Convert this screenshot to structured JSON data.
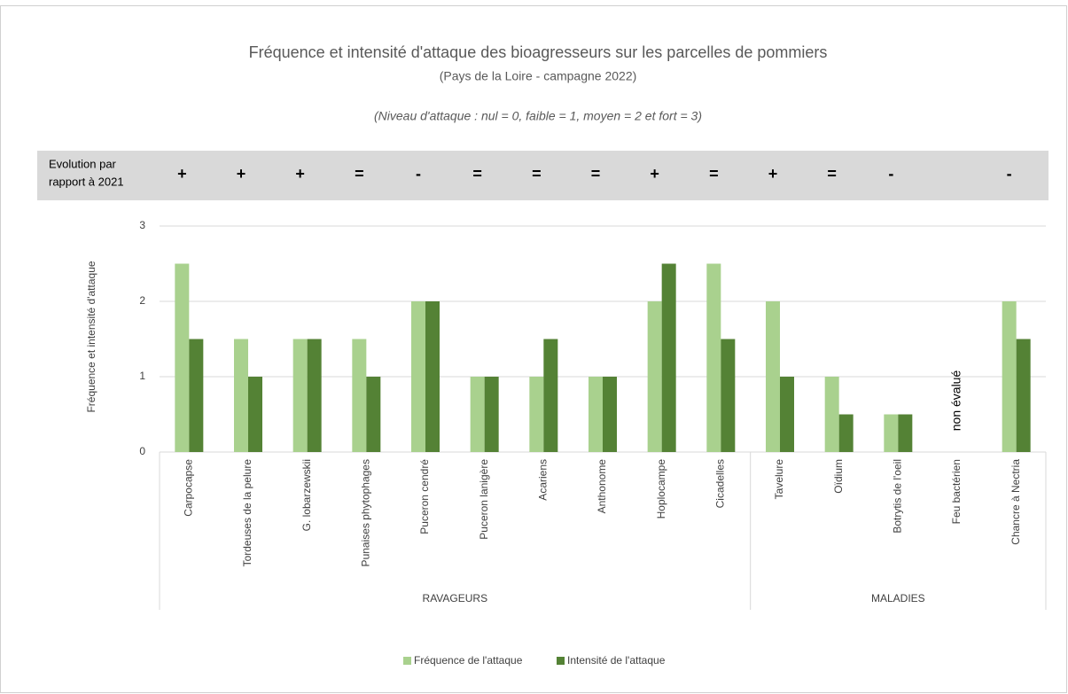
{
  "chart_data": {
    "type": "bar",
    "title": "Fréquence et intensité d'attaque des bioagresseurs sur les parcelles de pommiers",
    "subtitle": "(Pays de la Loire - campagne 2022)",
    "note": "(Niveau d'attaque : nul = 0, faible = 1, moyen = 2 et fort = 3)",
    "y_label": "Fréquence et intensité d'attaque",
    "evolution_label": [
      "Evolution par",
      "rapport à 2021"
    ],
    "evolution": [
      "+",
      "+",
      "+",
      "=",
      "-",
      "=",
      "=",
      "=",
      "+",
      "=",
      "+",
      "=",
      "-",
      null,
      "-"
    ],
    "annotation": "non évalué",
    "categories": [
      "Carpocapse",
      "Tordeuses de la pelure",
      "G. lobarzewskii",
      "Punaises phytophages",
      "Puceron cendré",
      "Puceron lanigère",
      "Acariens",
      "Anthonome",
      "Hoplocampe",
      "Cicadelles",
      "Tavelure",
      "Oïdium",
      "Botrytis de l'oeil",
      "Feu bactérien",
      "Chancre à Nectria"
    ],
    "groups": [
      {
        "name": "RAVAGEURS",
        "size": 10
      },
      {
        "name": "MALADIES",
        "size": 5
      }
    ],
    "series": [
      {
        "name": "Fréquence de l'attaque",
        "color": "#a9d18e",
        "values": [
          2.5,
          1.5,
          1.5,
          1.5,
          2,
          1,
          1,
          1,
          2,
          2.5,
          2,
          1,
          0.5,
          null,
          2
        ]
      },
      {
        "name": "Intensité de l'attaque",
        "color": "#548235",
        "values": [
          1.5,
          1,
          1.5,
          1,
          2,
          1,
          1.5,
          1,
          2.5,
          1.5,
          1,
          0.5,
          0.5,
          null,
          1.5
        ]
      }
    ],
    "ylim": [
      0,
      3
    ],
    "yticks": [
      0,
      1,
      2,
      3
    ],
    "grid": true
  }
}
